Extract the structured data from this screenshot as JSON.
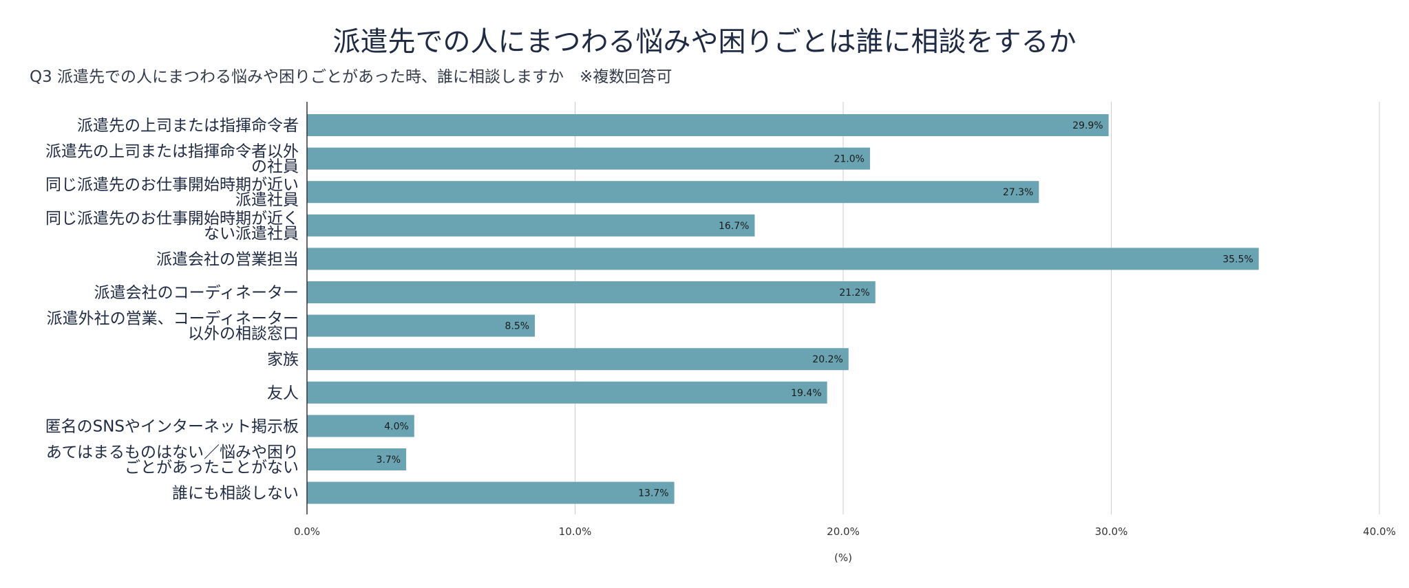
{
  "chart_data": {
    "type": "bar",
    "orientation": "horizontal",
    "title": "派遣先での人にまつわる悩みや困りごとは誰に相談をするか",
    "subtitle": "Q3 派遣先での人にまつわる悩みや困りごとがあった時、誰に相談しますか　※複数回答可",
    "categories": [
      [
        "派遣先の上司または指揮命令者"
      ],
      [
        "派遣先の上司または指揮命令者以外",
        "の社員"
      ],
      [
        "同じ派遣先のお仕事開始時期が近い",
        "派遣社員"
      ],
      [
        "同じ派遣先のお仕事開始時期が近く",
        "ない派遣社員"
      ],
      [
        "派遣会社の営業担当"
      ],
      [
        "派遣会社のコーディネーター"
      ],
      [
        "派遣外社の営業、コーディネーター",
        "以外の相談窓口"
      ],
      [
        "家族"
      ],
      [
        "友人"
      ],
      [
        "匿名のSNSやインターネット掲示板"
      ],
      [
        "あてはまるものはない／悩みや困り",
        "ごとがあったことがない"
      ],
      [
        "誰にも相談しない"
      ]
    ],
    "values": [
      29.9,
      21.0,
      27.3,
      16.7,
      35.5,
      21.2,
      8.5,
      20.2,
      19.4,
      4.0,
      3.7,
      13.7
    ],
    "value_labels": [
      "29.9%",
      "21.0%",
      "27.3%",
      "16.7%",
      "35.5%",
      "21.2%",
      "8.5%",
      "20.2%",
      "19.4%",
      "4.0%",
      "3.7%",
      "13.7%"
    ],
    "xlim": [
      0,
      40
    ],
    "xticks": [
      0,
      10,
      20,
      30,
      40
    ],
    "xtick_labels": [
      "0.0%",
      "10.0%",
      "20.0%",
      "30.0%",
      "40.0%"
    ],
    "xlabel": "(%)",
    "ylabel": "",
    "grid": true,
    "legend": "none",
    "colors": {
      "bar": "#6aa4b2",
      "grid": "#cccccc",
      "axis": "#333333"
    }
  }
}
